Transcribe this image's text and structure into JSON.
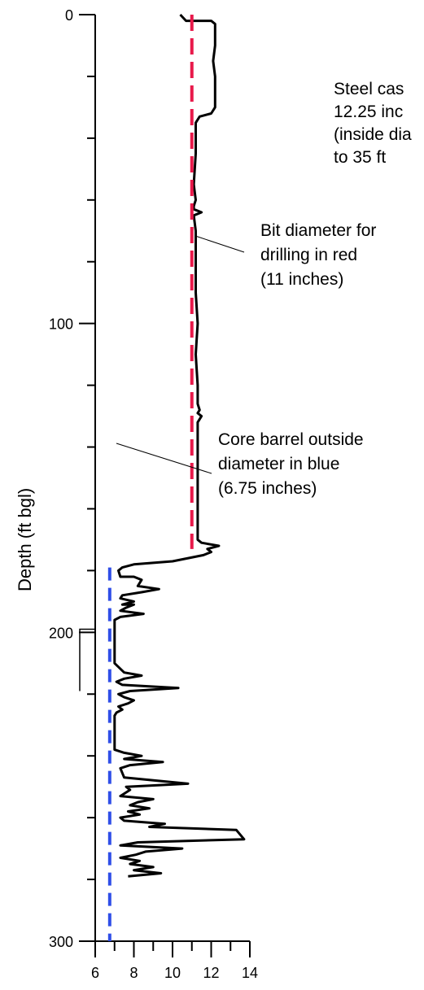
{
  "chart_data": {
    "type": "line",
    "ylabel": "Depth (ft bgl)",
    "xlabel": "",
    "xlim": [
      6,
      14
    ],
    "ylim": [
      0,
      300
    ],
    "y_inverted": true,
    "x_ticks": [
      "6",
      "8",
      "10",
      "12",
      "14"
    ],
    "y_ticks": [
      "0",
      "100",
      "200",
      "300"
    ],
    "grid": false,
    "series": [
      {
        "role": "caliper-log",
        "color": "#000000",
        "points": [
          [
            10.4,
            0
          ],
          [
            10.7,
            2
          ],
          [
            11.2,
            2
          ],
          [
            12.0,
            2
          ],
          [
            12.2,
            3
          ],
          [
            12.2,
            10
          ],
          [
            12.1,
            15
          ],
          [
            12.2,
            20
          ],
          [
            12.2,
            25
          ],
          [
            12.2,
            30
          ],
          [
            12.0,
            32
          ],
          [
            11.4,
            33
          ],
          [
            11.2,
            35
          ],
          [
            11.2,
            45
          ],
          [
            11.1,
            55
          ],
          [
            11.2,
            60
          ],
          [
            11.1,
            62
          ],
          [
            11.1,
            63
          ],
          [
            11.5,
            64
          ],
          [
            11.1,
            65
          ],
          [
            11.2,
            70
          ],
          [
            11.2,
            80
          ],
          [
            11.2,
            90
          ],
          [
            11.3,
            100
          ],
          [
            11.2,
            110
          ],
          [
            11.3,
            120
          ],
          [
            11.3,
            126
          ],
          [
            11.4,
            128
          ],
          [
            11.3,
            129
          ],
          [
            11.5,
            130
          ],
          [
            11.3,
            132
          ],
          [
            11.3,
            140
          ],
          [
            11.3,
            150
          ],
          [
            11.3,
            160
          ],
          [
            11.3,
            170
          ],
          [
            11.5,
            171
          ],
          [
            12.4,
            172
          ],
          [
            11.8,
            173
          ],
          [
            12.0,
            174
          ],
          [
            11.6,
            175
          ],
          [
            10.0,
            177
          ],
          [
            8.0,
            178
          ],
          [
            7.4,
            179
          ],
          [
            7.2,
            180
          ],
          [
            7.3,
            182
          ],
          [
            8.0,
            182
          ],
          [
            8.4,
            183
          ],
          [
            8.2,
            185
          ],
          [
            9.3,
            186
          ],
          [
            8.4,
            187
          ],
          [
            7.4,
            188
          ],
          [
            7.3,
            189
          ],
          [
            8.0,
            190
          ],
          [
            7.4,
            191
          ],
          [
            8.0,
            191
          ],
          [
            7.6,
            192
          ],
          [
            7.3,
            193
          ],
          [
            8.5,
            194
          ],
          [
            7.3,
            195
          ],
          [
            7.0,
            196
          ],
          [
            7.0,
            200
          ],
          [
            7.0,
            205
          ],
          [
            7.0,
            210
          ],
          [
            7.5,
            213
          ],
          [
            8.4,
            214
          ],
          [
            7.5,
            215
          ],
          [
            7.1,
            216
          ],
          [
            7.4,
            217
          ],
          [
            10.3,
            218
          ],
          [
            7.8,
            219
          ],
          [
            7.2,
            220
          ],
          [
            7.5,
            221
          ],
          [
            8.0,
            222
          ],
          [
            7.7,
            223
          ],
          [
            7.2,
            224
          ],
          [
            7.4,
            225
          ],
          [
            7.1,
            226
          ],
          [
            7.0,
            227
          ],
          [
            7.0,
            230
          ],
          [
            7.0,
            235
          ],
          [
            7.0,
            238
          ],
          [
            7.5,
            239
          ],
          [
            8.4,
            240
          ],
          [
            7.5,
            241
          ],
          [
            9.5,
            242
          ],
          [
            7.8,
            243
          ],
          [
            7.3,
            244
          ],
          [
            7.5,
            247
          ],
          [
            10.8,
            249
          ],
          [
            7.6,
            250
          ],
          [
            7.8,
            251
          ],
          [
            7.3,
            253
          ],
          [
            9.0,
            254
          ],
          [
            8.2,
            255
          ],
          [
            7.8,
            256
          ],
          [
            8.8,
            257
          ],
          [
            7.7,
            258
          ],
          [
            8.3,
            259
          ],
          [
            7.3,
            260
          ],
          [
            7.5,
            261
          ],
          [
            9.6,
            262
          ],
          [
            8.8,
            263
          ],
          [
            13.3,
            264
          ],
          [
            13.7,
            267
          ],
          [
            8.2,
            268
          ],
          [
            7.3,
            269
          ],
          [
            10.5,
            270
          ],
          [
            8.6,
            271
          ],
          [
            8.1,
            272
          ],
          [
            7.3,
            273
          ],
          [
            8.3,
            274
          ],
          [
            7.8,
            275
          ],
          [
            9.0,
            276
          ],
          [
            8.0,
            277
          ],
          [
            9.4,
            278
          ],
          [
            7.7,
            279
          ]
        ]
      },
      {
        "role": "bit-diameter",
        "color": "#e8194a",
        "x": 11.0,
        "y_from": 0,
        "y_to": 173
      },
      {
        "role": "core-barrel-diameter",
        "color": "#2f4ee8",
        "x": 6.75,
        "y_from": 179,
        "y_to": 300
      }
    ],
    "annotations": [
      {
        "lines": [
          "Steel cas",
          "12.25 inc",
          "(inside dia",
          "to 35 ft"
        ],
        "leader": false
      },
      {
        "lines": [
          "Bit diameter for",
          "drilling in red",
          "(11 inches)"
        ],
        "leader": true
      },
      {
        "lines": [
          "Core barrel outside",
          "diameter in blue",
          "(6.75 inches)"
        ],
        "leader": true
      }
    ],
    "bracket": {
      "y_from": 199,
      "y_to": 219
    }
  }
}
